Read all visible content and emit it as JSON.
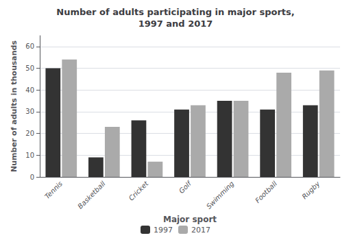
{
  "chart_data": {
    "type": "bar",
    "title": "Number of adults participating in major sports,\n1997 and 2017",
    "xlabel": "Major sport",
    "ylabel": "Number of adults in thousands",
    "categories": [
      "Tennis",
      "Basketball",
      "Cricket",
      "Golf",
      "Swimming",
      "Football",
      "Rugby"
    ],
    "series": [
      {
        "name": "1997",
        "color": "#333333",
        "values": [
          50,
          9,
          26,
          31,
          35,
          31,
          33
        ]
      },
      {
        "name": "2017",
        "color": "#aaaaaa",
        "values": [
          54,
          23,
          7,
          33,
          35,
          48,
          49
        ]
      }
    ],
    "ylim": [
      0,
      65
    ],
    "yticks": [
      0,
      10,
      20,
      30,
      40,
      50,
      60
    ],
    "grid": true,
    "legend": "bottom"
  }
}
